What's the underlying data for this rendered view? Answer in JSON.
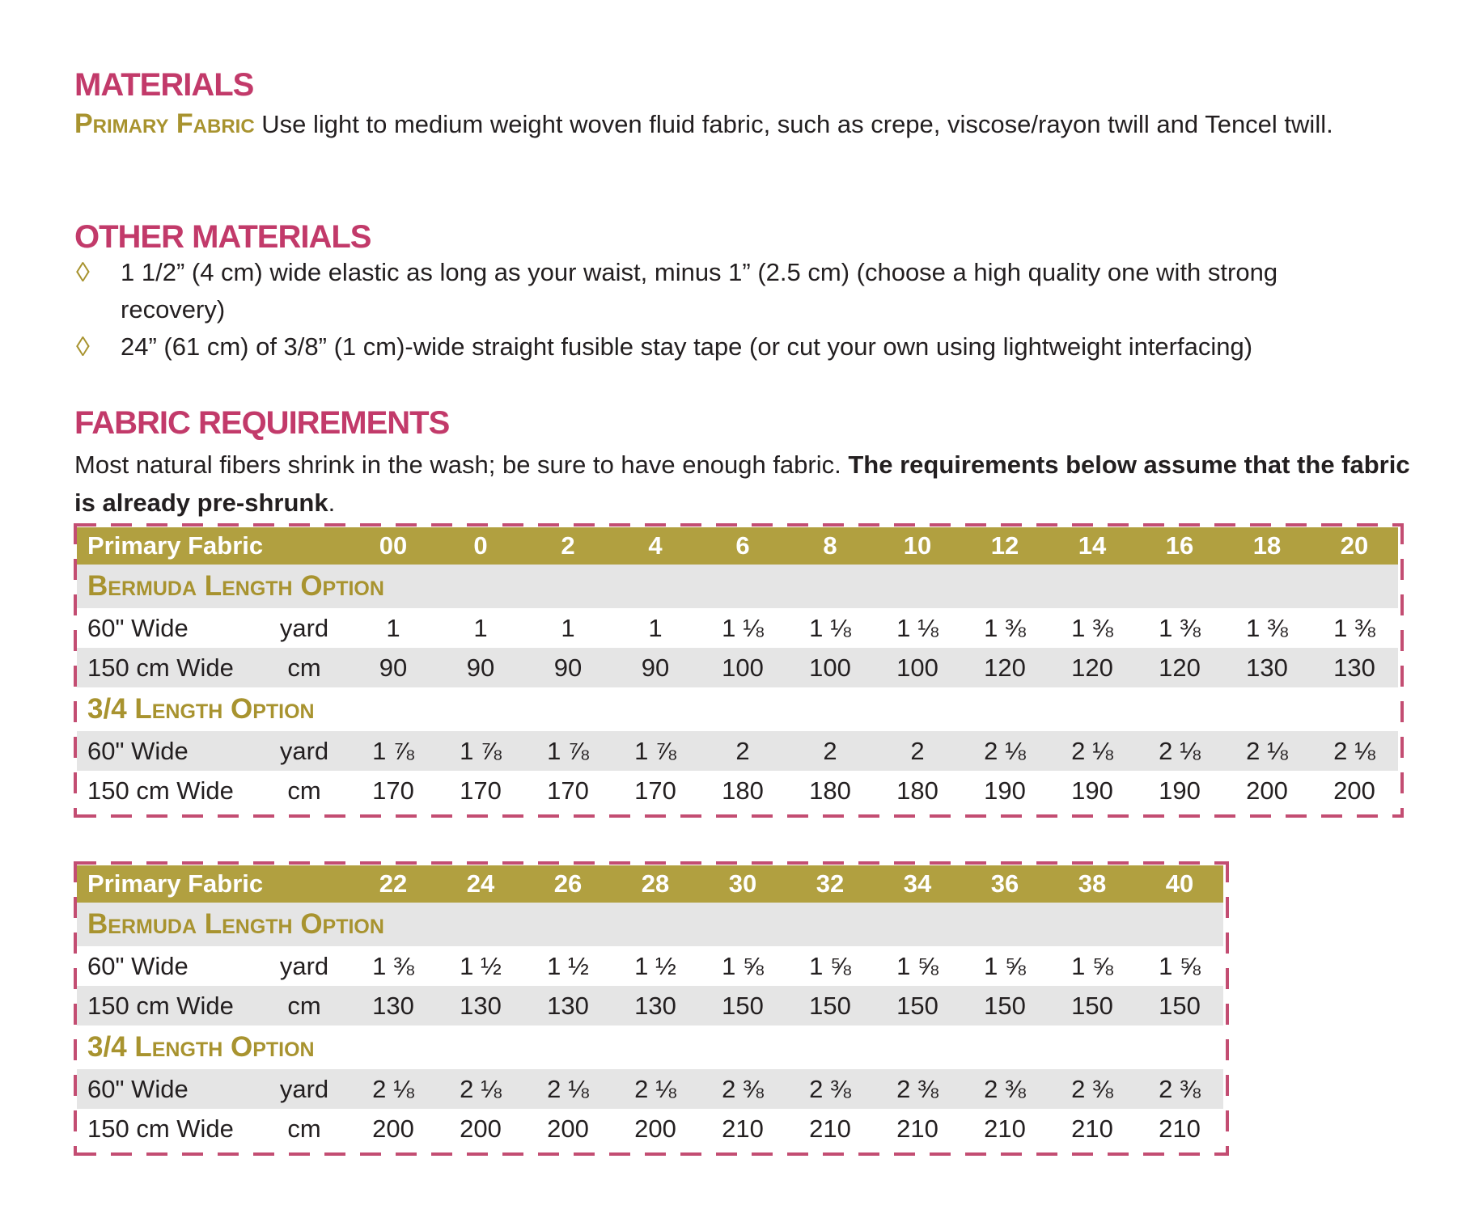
{
  "colors": {
    "heading_pink": "#c23a6a",
    "gold_text": "#a8932f",
    "table_header_olive": "#b1a040",
    "row_gray": "#e5e5e5",
    "dash_pink": "#c34d72",
    "body_text": "#231f20",
    "header_text_white": "#ffffff"
  },
  "sections": {
    "materials": {
      "heading": "MATERIALS",
      "lead_label": "Primary Fabric",
      "body": " Use light to medium weight woven fluid fabric, such as crepe, viscose/rayon twill and Tencel twill."
    },
    "other_materials": {
      "heading": "OTHER MATERIALS",
      "bullet_glyph": "◊",
      "items": [
        "1 1/2” (4 cm) wide elastic as long as your waist, minus 1” (2.5 cm) (choose a high quality one with strong recovery)",
        "24” (61 cm) of 3/8” (1 cm)-wide straight fusible stay tape (or cut your own using lightweight interfacing)"
      ]
    },
    "fabric_requirements": {
      "heading": "FABRIC REQUIREMENTS",
      "body_regular": "Most natural fibers shrink in the wash; be sure to have enough fabric. ",
      "body_bold": "The requirements below assume that the fabric is already pre-shrunk",
      "body_tail": "."
    }
  },
  "tables": [
    {
      "header_label": "Primary Fabric",
      "sizes": [
        "00",
        "0",
        "2",
        "4",
        "6",
        "8",
        "10",
        "12",
        "14",
        "16",
        "18",
        "20"
      ],
      "sections": [
        {
          "option_label": "Bermuda Length Option",
          "rows": [
            {
              "label": "60\" Wide",
              "unit": "yard",
              "values": [
                "1",
                "1",
                "1",
                "1",
                "1 ⅛",
                "1 ⅛",
                "1 ⅛",
                "1 ⅜",
                "1 ⅜",
                "1 ⅜",
                "1 ⅜",
                "1 ⅜"
              ]
            },
            {
              "label": "150 cm Wide",
              "unit": "cm",
              "values": [
                "90",
                "90",
                "90",
                "90",
                "100",
                "100",
                "100",
                "120",
                "120",
                "120",
                "130",
                "130"
              ]
            }
          ]
        },
        {
          "option_label": "3/4 Length Option",
          "rows": [
            {
              "label": "60\" Wide",
              "unit": "yard",
              "values": [
                "1 ⅞",
                "1 ⅞",
                "1 ⅞",
                "1 ⅞",
                "2",
                "2",
                "2",
                "2 ⅛",
                "2 ⅛",
                "2 ⅛",
                "2 ⅛",
                "2 ⅛"
              ]
            },
            {
              "label": "150 cm Wide",
              "unit": "cm",
              "values": [
                "170",
                "170",
                "170",
                "170",
                "180",
                "180",
                "180",
                "190",
                "190",
                "190",
                "200",
                "200"
              ]
            }
          ]
        }
      ]
    },
    {
      "header_label": "Primary Fabric",
      "sizes": [
        "22",
        "24",
        "26",
        "28",
        "30",
        "32",
        "34",
        "36",
        "38",
        "40"
      ],
      "sections": [
        {
          "option_label": "Bermuda Length Option",
          "rows": [
            {
              "label": "60\" Wide",
              "unit": "yard",
              "values": [
                "1 ⅜",
                "1 ½",
                "1 ½",
                "1 ½",
                "1 ⅝",
                "1 ⅝",
                "1 ⅝",
                "1 ⅝",
                "1 ⅝",
                "1 ⅝"
              ]
            },
            {
              "label": "150 cm Wide",
              "unit": "cm",
              "values": [
                "130",
                "130",
                "130",
                "130",
                "150",
                "150",
                "150",
                "150",
                "150",
                "150"
              ]
            }
          ]
        },
        {
          "option_label": "3/4 Length Option",
          "rows": [
            {
              "label": "60\" Wide",
              "unit": "yard",
              "values": [
                "2 ⅛",
                "2 ⅛",
                "2 ⅛",
                "2 ⅛",
                "2 ⅜",
                "2 ⅜",
                "2 ⅜",
                "2 ⅜",
                "2 ⅜",
                "2 ⅜"
              ]
            },
            {
              "label": "150 cm Wide",
              "unit": "cm",
              "values": [
                "200",
                "200",
                "200",
                "200",
                "210",
                "210",
                "210",
                "210",
                "210",
                "210"
              ]
            }
          ]
        }
      ]
    }
  ]
}
